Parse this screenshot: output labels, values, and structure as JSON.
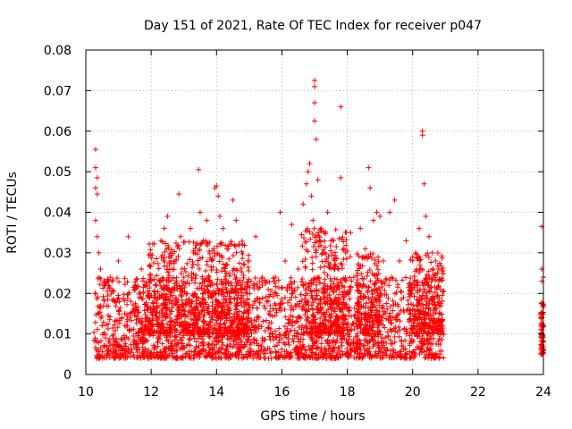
{
  "chart_data": {
    "type": "scatter",
    "title": "Day 151 of 2021, Rate Of TEC Index for receiver p047",
    "xlabel": "GPS time / hours",
    "ylabel": "ROTI / TECUs",
    "xlim": [
      10,
      24
    ],
    "ylim": [
      0,
      0.08
    ],
    "grid": true,
    "marker": "+",
    "color": "#ff0000",
    "x_ticks": [
      {
        "value": 10,
        "label": "10"
      },
      {
        "value": 12,
        "label": "12"
      },
      {
        "value": 14,
        "label": "14"
      },
      {
        "value": 16,
        "label": "16"
      },
      {
        "value": 18,
        "label": "18"
      },
      {
        "value": 20,
        "label": "20"
      },
      {
        "value": 22,
        "label": "22"
      },
      {
        "value": 24,
        "label": "24"
      }
    ],
    "y_ticks": [
      {
        "value": 0,
        "label": "0"
      },
      {
        "value": 0.01,
        "label": "0.01"
      },
      {
        "value": 0.02,
        "label": "0.02"
      },
      {
        "value": 0.03,
        "label": "0.03"
      },
      {
        "value": 0.04,
        "label": "0.04"
      },
      {
        "value": 0.05,
        "label": "0.05"
      },
      {
        "value": 0.06,
        "label": "0.06"
      },
      {
        "value": 0.07,
        "label": "0.07"
      },
      {
        "value": 0.08,
        "label": "0.08"
      }
    ],
    "points": [
      [
        10.3,
        0.0555
      ],
      [
        10.3,
        0.051
      ],
      [
        10.3,
        0.046
      ],
      [
        10.35,
        0.0445
      ],
      [
        10.35,
        0.0485
      ],
      [
        10.3,
        0.038
      ],
      [
        10.35,
        0.034
      ],
      [
        10.4,
        0.03
      ],
      [
        10.45,
        0.026
      ],
      [
        10.3,
        0.02
      ],
      [
        10.4,
        0.015
      ],
      [
        10.5,
        0.012
      ],
      [
        10.6,
        0.009
      ],
      [
        10.8,
        0.023
      ],
      [
        10.9,
        0.018
      ],
      [
        11.0,
        0.028
      ],
      [
        11.1,
        0.014
      ],
      [
        11.3,
        0.034
      ],
      [
        11.4,
        0.011
      ],
      [
        11.5,
        0.022
      ],
      [
        11.7,
        0.026
      ],
      [
        11.8,
        0.008
      ],
      [
        11.9,
        0.016
      ],
      [
        12.1,
        0.019
      ],
      [
        12.3,
        0.033
      ],
      [
        12.4,
        0.036
      ],
      [
        12.5,
        0.039
      ],
      [
        12.6,
        0.028
      ],
      [
        12.7,
        0.013
      ],
      [
        12.85,
        0.0445
      ],
      [
        12.9,
        0.034
      ],
      [
        13.0,
        0.024
      ],
      [
        13.1,
        0.01
      ],
      [
        13.2,
        0.036
      ],
      [
        13.3,
        0.03
      ],
      [
        13.45,
        0.0505
      ],
      [
        13.5,
        0.04
      ],
      [
        13.6,
        0.033
      ],
      [
        13.7,
        0.038
      ],
      [
        13.8,
        0.023
      ],
      [
        13.95,
        0.046
      ],
      [
        14.0,
        0.0465
      ],
      [
        14.05,
        0.044
      ],
      [
        14.1,
        0.039
      ],
      [
        14.2,
        0.036
      ],
      [
        14.3,
        0.027
      ],
      [
        14.4,
        0.014
      ],
      [
        14.5,
        0.043
      ],
      [
        14.6,
        0.038
      ],
      [
        14.8,
        0.032
      ],
      [
        15.0,
        0.028
      ],
      [
        15.2,
        0.034
      ],
      [
        15.4,
        0.022
      ],
      [
        15.6,
        0.015
      ],
      [
        15.8,
        0.024
      ],
      [
        15.95,
        0.04
      ],
      [
        16.1,
        0.028
      ],
      [
        16.3,
        0.037
      ],
      [
        16.5,
        0.026
      ],
      [
        16.65,
        0.042
      ],
      [
        16.75,
        0.047
      ],
      [
        16.8,
        0.05
      ],
      [
        16.85,
        0.052
      ],
      [
        16.9,
        0.044
      ],
      [
        16.95,
        0.038
      ],
      [
        17.0,
        0.0725
      ],
      [
        17.0,
        0.071
      ],
      [
        17.0,
        0.067
      ],
      [
        17.0,
        0.0625
      ],
      [
        17.05,
        0.058
      ],
      [
        17.1,
        0.048
      ],
      [
        17.2,
        0.036
      ],
      [
        17.3,
        0.03
      ],
      [
        17.4,
        0.04
      ],
      [
        17.5,
        0.033
      ],
      [
        17.6,
        0.026
      ],
      [
        17.8,
        0.066
      ],
      [
        17.8,
        0.0485
      ],
      [
        17.95,
        0.03
      ],
      [
        18.1,
        0.035
      ],
      [
        18.2,
        0.024
      ],
      [
        18.4,
        0.036
      ],
      [
        18.55,
        0.031
      ],
      [
        18.65,
        0.051
      ],
      [
        18.7,
        0.046
      ],
      [
        18.8,
        0.038
      ],
      [
        18.9,
        0.04
      ],
      [
        19.0,
        0.039
      ],
      [
        19.1,
        0.028
      ],
      [
        19.3,
        0.04
      ],
      [
        19.45,
        0.043
      ],
      [
        19.6,
        0.028
      ],
      [
        19.8,
        0.033
      ],
      [
        20.0,
        0.029
      ],
      [
        20.1,
        0.022
      ],
      [
        20.2,
        0.036
      ],
      [
        20.3,
        0.06
      ],
      [
        20.3,
        0.059
      ],
      [
        20.35,
        0.047
      ],
      [
        20.4,
        0.039
      ],
      [
        20.5,
        0.034
      ],
      [
        20.6,
        0.03
      ],
      [
        20.7,
        0.028
      ],
      [
        20.8,
        0.026
      ],
      [
        20.85,
        0.021
      ],
      [
        23.95,
        0.0365
      ],
      [
        23.95,
        0.026
      ],
      [
        24.0,
        0.024
      ],
      [
        23.95,
        0.023
      ],
      [
        24.0,
        0.017
      ],
      [
        23.95,
        0.014
      ],
      [
        24.0,
        0.012
      ],
      [
        23.95,
        0.01
      ],
      [
        24.0,
        0.008
      ],
      [
        23.95,
        0.006
      ]
    ],
    "dense_segments": [
      {
        "x": [
          10.25,
          20.95
        ],
        "y_min": 0.004,
        "y_max": 0.024,
        "count": 2200
      },
      {
        "x": [
          11.9,
          15.0
        ],
        "y_min": 0.01,
        "y_max": 0.033,
        "count": 700
      },
      {
        "x": [
          16.6,
          18.1
        ],
        "y_min": 0.01,
        "y_max": 0.036,
        "count": 350
      },
      {
        "x": [
          18.3,
          19.0
        ],
        "y_min": 0.01,
        "y_max": 0.03,
        "count": 180
      },
      {
        "x": [
          19.9,
          20.95
        ],
        "y_min": 0.01,
        "y_max": 0.03,
        "count": 220
      },
      {
        "x": [
          23.92,
          24.0
        ],
        "y_min": 0.005,
        "y_max": 0.018,
        "count": 60
      }
    ]
  }
}
